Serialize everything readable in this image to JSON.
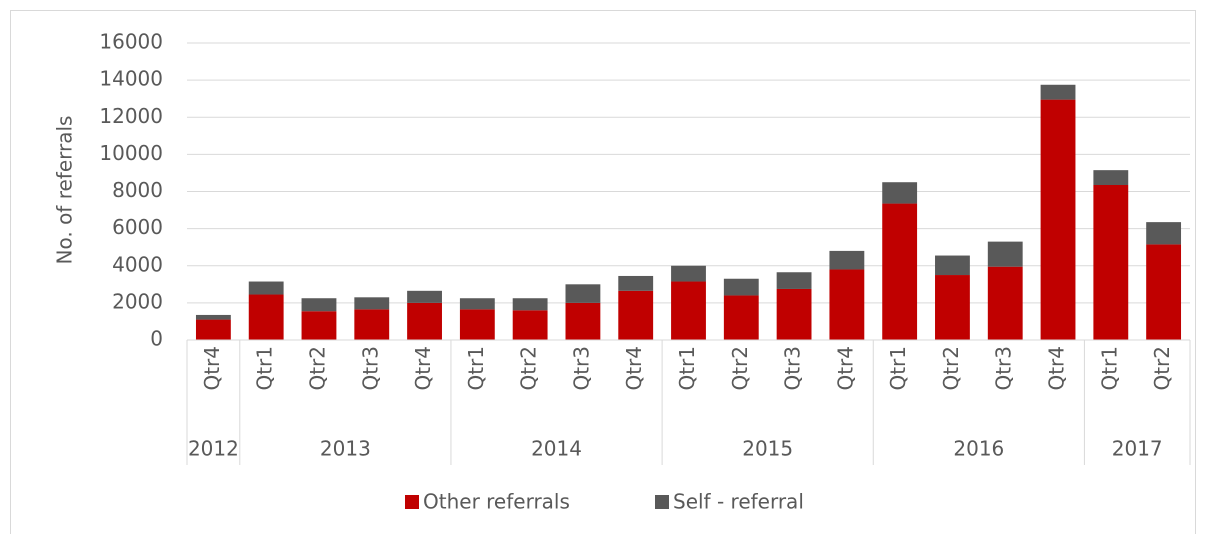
{
  "chart_data": {
    "type": "stacked_bar",
    "y_label": "No. of referrals",
    "groups": [
      {
        "name": "2012",
        "categories": [
          "Qtr4"
        ]
      },
      {
        "name": "2013",
        "categories": [
          "Qtr1",
          "Qtr2",
          "Qtr3",
          "Qtr4"
        ]
      },
      {
        "name": "2014",
        "categories": [
          "Qtr1",
          "Qtr2",
          "Qtr3",
          "Qtr4"
        ]
      },
      {
        "name": "2015",
        "categories": [
          "Qtr1",
          "Qtr2",
          "Qtr3",
          "Qtr4"
        ]
      },
      {
        "name": "2016",
        "categories": [
          "Qtr1",
          "Qtr2",
          "Qtr3",
          "Qtr4"
        ]
      },
      {
        "name": "2017",
        "categories": [
          "Qtr1",
          "Qtr2"
        ]
      }
    ],
    "series": [
      {
        "name": "Other referrals",
        "color": "#c00000",
        "values": [
          1100,
          2450,
          1550,
          1650,
          2000,
          1650,
          1600,
          2000,
          2650,
          3150,
          2400,
          2750,
          3800,
          7350,
          3500,
          3950,
          12950,
          8350,
          5150
        ]
      },
      {
        "name": "Self - referral",
        "color": "#595959",
        "values": [
          250,
          700,
          700,
          650,
          650,
          600,
          650,
          1000,
          800,
          850,
          900,
          900,
          1000,
          1150,
          1050,
          1350,
          800,
          800,
          1200
        ]
      }
    ],
    "ylim": [
      0,
      16000
    ],
    "yticks": [
      0,
      2000,
      4000,
      6000,
      8000,
      10000,
      12000,
      14000,
      16000
    ],
    "grid": true,
    "legend": "bottom"
  }
}
